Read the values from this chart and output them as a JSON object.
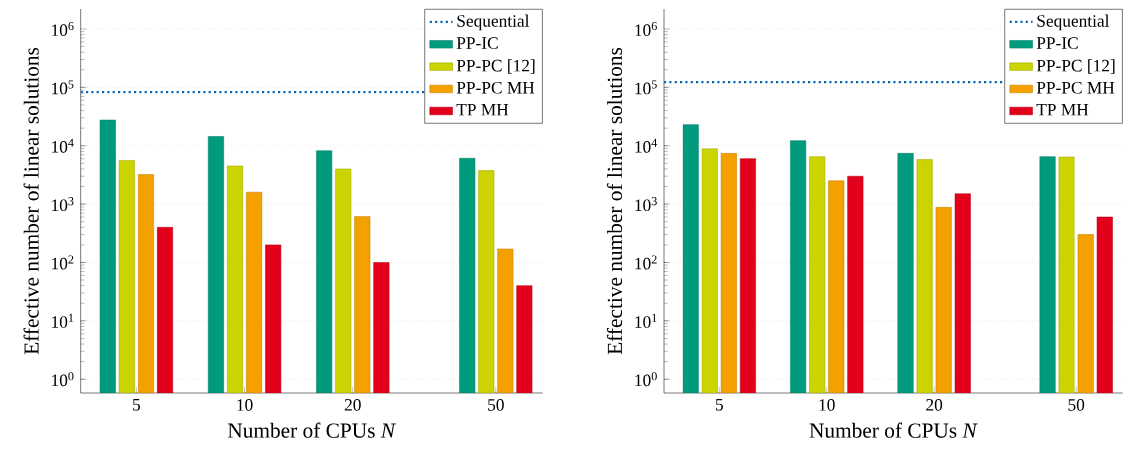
{
  "chart_data": [
    {
      "type": "bar",
      "xlabel": "Number of CPUs *N*",
      "ylabel": "Effective number of linear solutions",
      "x": [
        5,
        10,
        20,
        50
      ],
      "xlim": [
        3.5,
        67.5
      ],
      "xticks": [
        5,
        10,
        20,
        50
      ],
      "ylim": [
        0.58,
        2200000
      ],
      "yticks": [
        {
          "value": 1,
          "label": "10$^{0}$"
        },
        {
          "value": 10,
          "label": "10$^{1}$"
        },
        {
          "value": 100,
          "label": "10$^{2}$"
        },
        {
          "value": 1000,
          "label": "10$^{3}$"
        },
        {
          "value": 10000,
          "label": "10$^{4}$"
        },
        {
          "value": 100000,
          "label": "10$^{5}$"
        },
        {
          "value": 1000000,
          "label": "10$^{6}$"
        }
      ],
      "log": "xy",
      "grid": "y",
      "legend": "top right",
      "ref_lines": [
        {
          "axis": "y",
          "value": 83000,
          "label": "Sequential",
          "color": "#0065bd",
          "line_style": "dotted"
        }
      ],
      "series": [
        {
          "name": "PP-IC",
          "color": "#009b7d",
          "values": [
            27500,
            14400,
            8200,
            6100
          ]
        },
        {
          "name": "PP-PC [12]",
          "color": "#cbd300",
          "values": [
            5600,
            4500,
            4000,
            3750
          ]
        },
        {
          "name": "PP-PC MH",
          "color": "#f4a100",
          "values": [
            3200,
            1600,
            610,
            170
          ]
        },
        {
          "name": "TP MH",
          "color": "#e2001a",
          "values": [
            400,
            200,
            100,
            40
          ]
        }
      ]
    },
    {
      "type": "bar",
      "xlabel": "Number of CPUs *N*",
      "ylabel": "Effective number of linear solutions",
      "x": [
        5,
        10,
        20,
        50
      ],
      "xlim": [
        3.5,
        67.5
      ],
      "xticks": [
        5,
        10,
        20,
        50
      ],
      "ylim": [
        0.58,
        2200000
      ],
      "yticks": [
        {
          "value": 1,
          "label": "10$^{0}$"
        },
        {
          "value": 10,
          "label": "10$^{1}$"
        },
        {
          "value": 100,
          "label": "10$^{2}$"
        },
        {
          "value": 1000,
          "label": "10$^{3}$"
        },
        {
          "value": 10000,
          "label": "10$^{4}$"
        },
        {
          "value": 100000,
          "label": "10$^{5}$"
        },
        {
          "value": 1000000,
          "label": "10$^{6}$"
        }
      ],
      "log": "xy",
      "grid": "y",
      "legend": "top right",
      "ref_lines": [
        {
          "axis": "y",
          "value": 123000,
          "label": "Sequential",
          "color": "#0065bd",
          "line_style": "dotted"
        }
      ],
      "series": [
        {
          "name": "PP-IC",
          "color": "#009b7d",
          "values": [
            23000,
            12200,
            7400,
            6500
          ]
        },
        {
          "name": "PP-PC [12]",
          "color": "#cbd300",
          "values": [
            8900,
            6500,
            5800,
            6400
          ]
        },
        {
          "name": "PP-PC MH",
          "color": "#f4a100",
          "values": [
            7400,
            2500,
            880,
            300
          ]
        },
        {
          "name": "TP MH",
          "color": "#e2001a",
          "values": [
            6000,
            3000,
            1500,
            600
          ]
        }
      ]
    }
  ]
}
